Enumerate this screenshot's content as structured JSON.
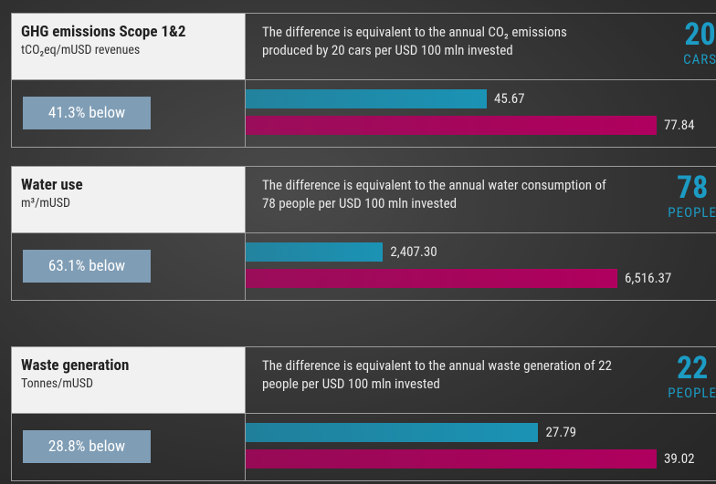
{
  "chart_data": {
    "type": "bar-panels",
    "panels": [
      {
        "title": "GHG emissions Scope 1&2",
        "unit": "tCO₂eq/mUSD revenues",
        "description": "The difference is equivalent to the annual CO₂ emissions produced by 20 cars per USD 100 mln invested",
        "big_number": 20,
        "big_label": "CARS",
        "below_label": "41.3% below",
        "values": [
          45.67,
          77.84
        ],
        "colors": [
          "#1b93b5",
          "#b0005f"
        ]
      },
      {
        "title": "Water use",
        "unit": "m³/mUSD",
        "description": "The difference is equivalent to the annual water consumption of 78 people per USD 100 mln invested",
        "big_number": 78,
        "big_label": "PEOPLE",
        "below_label": "63.1% below",
        "values": [
          2407.3,
          6516.37
        ],
        "value_labels": [
          "2,407.30",
          "6,516.37"
        ],
        "colors": [
          "#1b93b5",
          "#b0005f"
        ]
      },
      {
        "title": "Waste generation",
        "unit": "Tonnes/mUSD",
        "description": "The difference is equivalent to the annual waste generation of 22 people per USD 100 mln invested",
        "big_number": 22,
        "big_label": "PEOPLE",
        "below_label": "28.8% below",
        "values": [
          27.79,
          39.02
        ],
        "colors": [
          "#1b93b5",
          "#b0005f"
        ]
      }
    ]
  }
}
